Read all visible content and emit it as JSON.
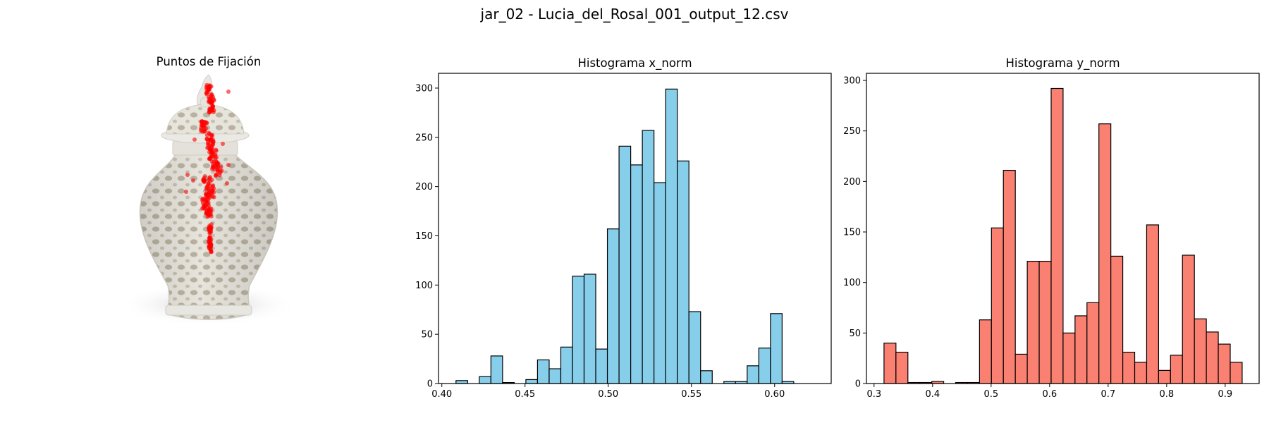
{
  "figure": {
    "suptitle": "jar_02 - Lucia_del_Rosal_001_output_12.csv"
  },
  "fixation_panel": {
    "title": "Puntos de Fijación",
    "point_color": "#ff0000"
  },
  "chart_data": [
    {
      "type": "bar",
      "title": "Histograma x_norm",
      "xlabel": "",
      "ylabel": "",
      "bin_start": 0.4085,
      "bin_width": 0.007,
      "values": [
        3,
        0,
        7,
        28,
        1,
        0,
        4,
        24,
        15,
        37,
        109,
        111,
        35,
        157,
        241,
        222,
        257,
        204,
        299,
        226,
        73,
        13,
        0,
        2,
        2,
        18,
        36,
        71,
        2,
        0
      ],
      "xlim": [
        0.398,
        0.634
      ],
      "ylim": [
        0,
        315
      ],
      "xticks": [
        "0.40",
        "0.45",
        "0.50",
        "0.55",
        "0.60"
      ],
      "yticks": [
        "0",
        "50",
        "100",
        "150",
        "200",
        "250",
        "300"
      ],
      "grid": false,
      "color": "#87ceeb",
      "edgecolor": "#000000"
    },
    {
      "type": "bar",
      "title": "Histograma y_norm",
      "xlabel": "",
      "ylabel": "",
      "bin_start": 0.317,
      "bin_width": 0.0204,
      "values": [
        40,
        31,
        1,
        1,
        2,
        0,
        1,
        1,
        63,
        154,
        211,
        29,
        121,
        121,
        292,
        50,
        67,
        80,
        257,
        126,
        31,
        21,
        157,
        13,
        28,
        127,
        64,
        51,
        39,
        21
      ],
      "xlim": [
        0.287,
        0.958
      ],
      "ylim": [
        0,
        307
      ],
      "xticks": [
        "0.3",
        "0.4",
        "0.5",
        "0.6",
        "0.7",
        "0.8",
        "0.9"
      ],
      "yticks": [
        "0",
        "50",
        "100",
        "150",
        "200",
        "250",
        "300"
      ],
      "grid": false,
      "color": "#fa8072",
      "edgecolor": "#000000"
    }
  ]
}
